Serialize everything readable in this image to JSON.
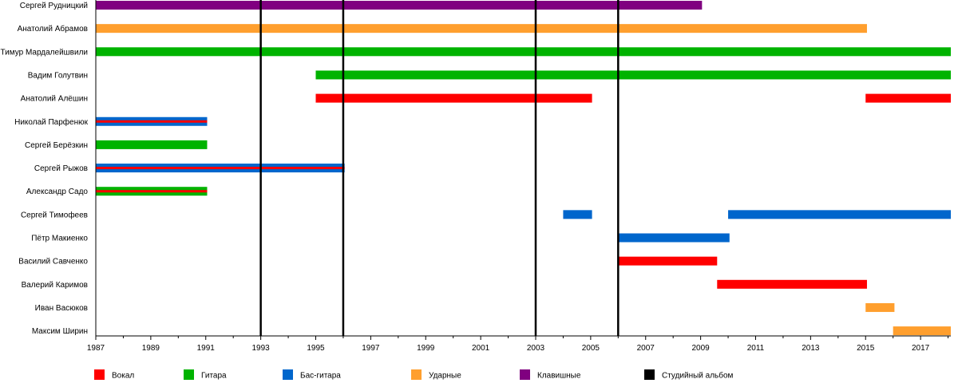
{
  "chart_data": {
    "type": "timeline",
    "x_range": [
      1987,
      2018.1
    ],
    "x_ticks": [
      1987,
      1989,
      1991,
      1993,
      1995,
      1997,
      1999,
      2001,
      2003,
      2005,
      2007,
      2009,
      2011,
      2013,
      2015,
      2017
    ],
    "minor_tick_step": 1,
    "album_years": [
      1993,
      1996,
      2003,
      2006
    ],
    "colors": {
      "vocal": "#ff0000",
      "guitar": "#00b300",
      "bass": "#0066cc",
      "drums": "#ff9f2e",
      "keys": "#800080",
      "album": "#000000"
    },
    "members": [
      {
        "name": "Сергей Рудницкий",
        "bars": [
          {
            "start": 1987,
            "end": 2009.05,
            "roles": [
              "keys"
            ]
          }
        ]
      },
      {
        "name": "Анатолий Абрамов",
        "bars": [
          {
            "start": 1987,
            "end": 2015.05,
            "roles": [
              "drums"
            ]
          }
        ]
      },
      {
        "name": "Тимур Мардалейшвили",
        "bars": [
          {
            "start": 1987,
            "end": 2018.1,
            "roles": [
              "guitar"
            ]
          }
        ]
      },
      {
        "name": "Вадим Голутвин",
        "bars": [
          {
            "start": 1995,
            "end": 2018.1,
            "roles": [
              "guitar"
            ]
          }
        ]
      },
      {
        "name": "Анатолий Алёшин",
        "bars": [
          {
            "start": 1995,
            "end": 2005.05,
            "roles": [
              "vocal"
            ]
          },
          {
            "start": 2015,
            "end": 2018.1,
            "roles": [
              "vocal"
            ]
          }
        ]
      },
      {
        "name": "Николай Парфенюк",
        "bars": [
          {
            "start": 1987,
            "end": 1991.05,
            "roles": [
              "bass",
              "vocal"
            ]
          }
        ]
      },
      {
        "name": "Сергей Берёзкин",
        "bars": [
          {
            "start": 1987,
            "end": 1991.05,
            "roles": [
              "guitar"
            ]
          }
        ]
      },
      {
        "name": "Сергей Рыжов",
        "bars": [
          {
            "start": 1987,
            "end": 1996.05,
            "roles": [
              "bass",
              "vocal"
            ]
          }
        ]
      },
      {
        "name": "Александр Садо",
        "bars": [
          {
            "start": 1987,
            "end": 1991.05,
            "roles": [
              "guitar",
              "vocal"
            ]
          }
        ]
      },
      {
        "name": "Сергей Тимофеев",
        "bars": [
          {
            "start": 2004,
            "end": 2005.05,
            "roles": [
              "bass"
            ]
          },
          {
            "start": 2010,
            "end": 2018.1,
            "roles": [
              "bass"
            ]
          }
        ]
      },
      {
        "name": "Пётр Макиенко",
        "bars": [
          {
            "start": 2006,
            "end": 2010.05,
            "roles": [
              "bass"
            ]
          }
        ]
      },
      {
        "name": "Василий Савченко",
        "bars": [
          {
            "start": 2006,
            "end": 2009.6,
            "roles": [
              "vocal"
            ]
          }
        ]
      },
      {
        "name": "Валерий Каримов",
        "bars": [
          {
            "start": 2009.6,
            "end": 2015.05,
            "roles": [
              "vocal"
            ]
          }
        ]
      },
      {
        "name": "Иван Васюков",
        "bars": [
          {
            "start": 2015,
            "end": 2016.05,
            "roles": [
              "drums"
            ]
          }
        ]
      },
      {
        "name": "Максим Ширин",
        "bars": [
          {
            "start": 2016,
            "end": 2018.1,
            "roles": [
              "drums"
            ]
          }
        ]
      }
    ],
    "legend": [
      {
        "key": "vocal",
        "label": "Вокал"
      },
      {
        "key": "guitar",
        "label": "Гитара"
      },
      {
        "key": "bass",
        "label": "Бас-гитара"
      },
      {
        "key": "drums",
        "label": "Ударные"
      },
      {
        "key": "keys",
        "label": "Клавишные"
      },
      {
        "key": "album",
        "label": "Студийный альбом"
      }
    ]
  }
}
